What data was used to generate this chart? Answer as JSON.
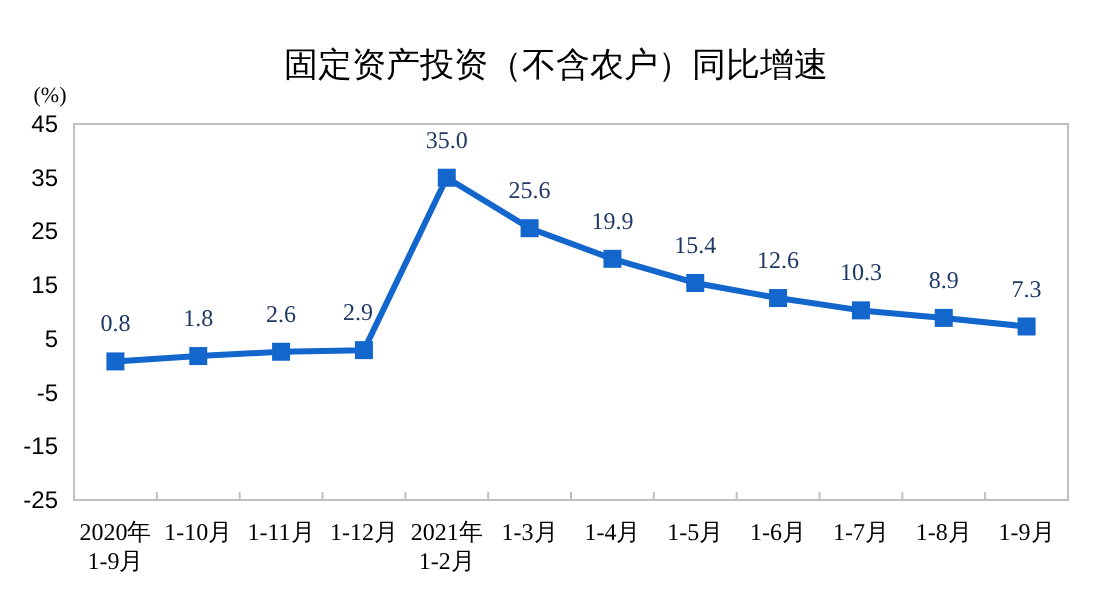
{
  "chart_data": {
    "type": "line",
    "title": "固定资产投资（不含农户）同比增速",
    "ylabel": "(%)",
    "categories": [
      "2020年\n1-9月",
      "1-10月",
      "1-11月",
      "1-12月",
      "2021年\n1-2月",
      "1-3月",
      "1-4月",
      "1-5月",
      "1-6月",
      "1-7月",
      "1-8月",
      "1-9月"
    ],
    "series": [
      {
        "color": "#1366cc",
        "values": [
          0.8,
          1.8,
          2.6,
          2.9,
          35.0,
          25.6,
          19.9,
          15.4,
          12.6,
          10.3,
          8.9,
          7.3
        ],
        "value_labels": [
          "0.8",
          "1.8",
          "2.6",
          "2.9",
          "35.0",
          "25.6",
          "19.9",
          "15.4",
          "12.6",
          "10.3",
          "8.9",
          "7.3"
        ]
      }
    ],
    "ylim": [
      -25,
      45
    ],
    "yticks": [
      -25,
      -15,
      -5,
      5,
      15,
      25,
      35,
      45
    ],
    "marker": "square",
    "line_style": "solid"
  }
}
